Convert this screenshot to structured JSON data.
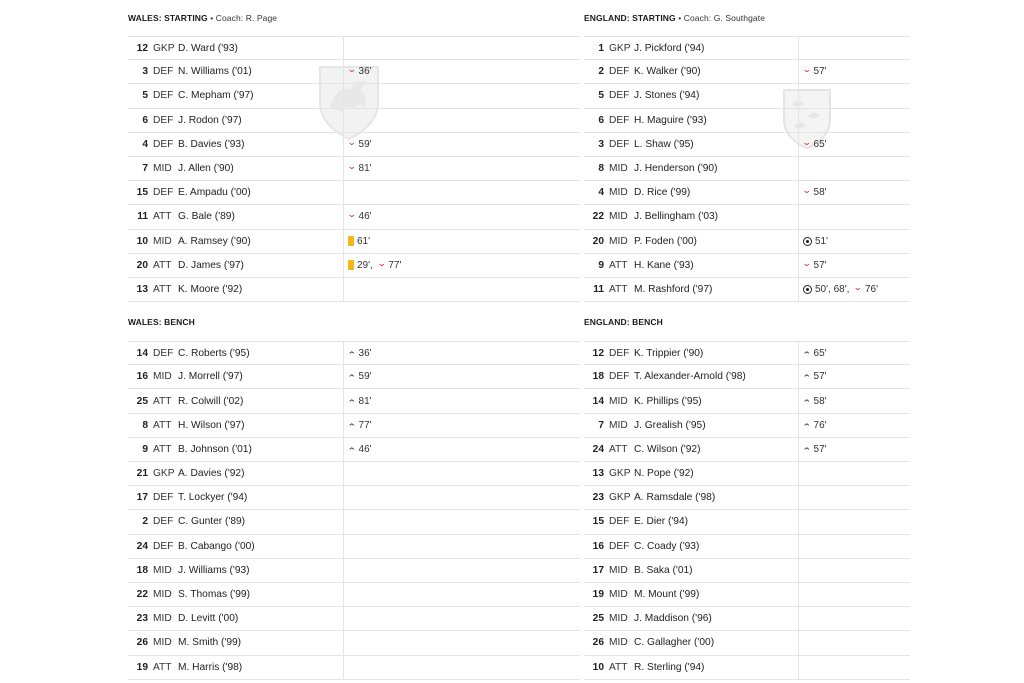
{
  "wales": {
    "starting_title": "WALES: STARTING",
    "coach": " • Coach: R. Page",
    "bench_title": "WALES: BENCH",
    "starting": [
      {
        "num": "12",
        "pos": "GKP",
        "name": "D. Ward ('93)",
        "events": []
      },
      {
        "num": "3",
        "pos": "DEF",
        "name": "N. Williams ('01)",
        "events": [
          {
            "icon": "sub-off-icon",
            "text": "36'"
          }
        ]
      },
      {
        "num": "5",
        "pos": "DEF",
        "name": "C. Mepham ('97)",
        "events": []
      },
      {
        "num": "6",
        "pos": "DEF",
        "name": "J. Rodon ('97)",
        "events": []
      },
      {
        "num": "4",
        "pos": "DEF",
        "name": "B. Davies ('93)",
        "events": [
          {
            "icon": "sub-off-icon",
            "text": "59'"
          }
        ]
      },
      {
        "num": "7",
        "pos": "MID",
        "name": "J. Allen ('90)",
        "events": [
          {
            "icon": "sub-off-icon",
            "text": "81'"
          }
        ]
      },
      {
        "num": "15",
        "pos": "DEF",
        "name": "E. Ampadu ('00)",
        "events": []
      },
      {
        "num": "11",
        "pos": "ATT",
        "name": "G. Bale ('89)",
        "events": [
          {
            "icon": "sub-off-icon",
            "text": "46'"
          }
        ]
      },
      {
        "num": "10",
        "pos": "MID",
        "name": "A. Ramsey ('90)",
        "events": [
          {
            "icon": "yellow-card-icon",
            "text": "61'"
          }
        ]
      },
      {
        "num": "20",
        "pos": "ATT",
        "name": "D. James ('97)",
        "events": [
          {
            "icon": "yellow-card-icon",
            "text": "29',"
          },
          {
            "icon": "sub-off-icon",
            "text": "77'"
          }
        ]
      },
      {
        "num": "13",
        "pos": "ATT",
        "name": "K. Moore ('92)",
        "events": []
      }
    ],
    "bench": [
      {
        "num": "14",
        "pos": "DEF",
        "name": "C. Roberts ('95)",
        "events": [
          {
            "icon": "sub-on-icon",
            "text": "36'"
          }
        ]
      },
      {
        "num": "16",
        "pos": "MID",
        "name": "J. Morrell ('97)",
        "events": [
          {
            "icon": "sub-on-icon",
            "text": "59'"
          }
        ]
      },
      {
        "num": "25",
        "pos": "ATT",
        "name": "R. Colwill ('02)",
        "events": [
          {
            "icon": "sub-on-icon",
            "text": "81'"
          }
        ]
      },
      {
        "num": "8",
        "pos": "ATT",
        "name": "H. Wilson ('97)",
        "events": [
          {
            "icon": "sub-on-icon",
            "text": "77'"
          }
        ]
      },
      {
        "num": "9",
        "pos": "ATT",
        "name": "B. Johnson ('01)",
        "events": [
          {
            "icon": "sub-on-icon",
            "text": "46'"
          }
        ]
      },
      {
        "num": "21",
        "pos": "GKP",
        "name": "A. Davies ('92)",
        "events": []
      },
      {
        "num": "17",
        "pos": "DEF",
        "name": "T. Lockyer ('94)",
        "events": []
      },
      {
        "num": "2",
        "pos": "DEF",
        "name": "C. Gunter ('89)",
        "events": []
      },
      {
        "num": "24",
        "pos": "DEF",
        "name": "B. Cabango ('00)",
        "events": []
      },
      {
        "num": "18",
        "pos": "MID",
        "name": "J. Williams ('93)",
        "events": []
      },
      {
        "num": "22",
        "pos": "MID",
        "name": "S. Thomas ('99)",
        "events": []
      },
      {
        "num": "23",
        "pos": "MID",
        "name": "D. Levitt ('00)",
        "events": []
      },
      {
        "num": "26",
        "pos": "MID",
        "name": "M. Smith ('99)",
        "events": []
      },
      {
        "num": "19",
        "pos": "ATT",
        "name": "M. Harris ('98)",
        "events": []
      }
    ]
  },
  "england": {
    "starting_title": "ENGLAND: STARTING",
    "coach": " • Coach: G. Southgate",
    "bench_title": "ENGLAND: BENCH",
    "starting": [
      {
        "num": "1",
        "pos": "GKP",
        "name": "J. Pickford ('94)",
        "events": []
      },
      {
        "num": "2",
        "pos": "DEF",
        "name": "K. Walker ('90)",
        "events": [
          {
            "icon": "sub-off-icon",
            "text": "57'"
          }
        ]
      },
      {
        "num": "5",
        "pos": "DEF",
        "name": "J. Stones ('94)",
        "events": []
      },
      {
        "num": "6",
        "pos": "DEF",
        "name": "H. Maguire ('93)",
        "events": []
      },
      {
        "num": "3",
        "pos": "DEF",
        "name": "L. Shaw ('95)",
        "events": [
          {
            "icon": "sub-off-icon",
            "text": "65'"
          }
        ]
      },
      {
        "num": "8",
        "pos": "MID",
        "name": "J. Henderson ('90)",
        "events": []
      },
      {
        "num": "4",
        "pos": "MID",
        "name": "D. Rice ('99)",
        "events": [
          {
            "icon": "sub-off-icon",
            "text": "58'"
          }
        ]
      },
      {
        "num": "22",
        "pos": "MID",
        "name": "J. Bellingham ('03)",
        "events": []
      },
      {
        "num": "20",
        "pos": "MID",
        "name": "P. Foden ('00)",
        "events": [
          {
            "icon": "goal-icon",
            "text": "51'"
          }
        ]
      },
      {
        "num": "9",
        "pos": "ATT",
        "name": "H. Kane ('93)",
        "events": [
          {
            "icon": "sub-off-icon",
            "text": "57'"
          }
        ]
      },
      {
        "num": "11",
        "pos": "ATT",
        "name": "M. Rashford ('97)",
        "events": [
          {
            "icon": "goal-icon",
            "text": "50', 68',"
          },
          {
            "icon": "sub-off-icon",
            "text": "76'"
          }
        ]
      }
    ],
    "bench": [
      {
        "num": "12",
        "pos": "DEF",
        "name": "K. Trippier ('90)",
        "events": [
          {
            "icon": "sub-on-icon",
            "text": "65'"
          }
        ]
      },
      {
        "num": "18",
        "pos": "DEF",
        "name": "T. Alexander-Arnold ('98)",
        "events": [
          {
            "icon": "sub-on-icon",
            "text": "57'"
          }
        ]
      },
      {
        "num": "14",
        "pos": "MID",
        "name": "K. Phillips ('95)",
        "events": [
          {
            "icon": "sub-on-icon",
            "text": "58'"
          }
        ]
      },
      {
        "num": "7",
        "pos": "MID",
        "name": "J. Grealish ('95)",
        "events": [
          {
            "icon": "sub-on-icon",
            "text": "76'"
          }
        ]
      },
      {
        "num": "24",
        "pos": "ATT",
        "name": "C. Wilson ('92)",
        "events": [
          {
            "icon": "sub-on-icon",
            "text": "57'"
          }
        ]
      },
      {
        "num": "13",
        "pos": "GKP",
        "name": "N. Pope ('92)",
        "events": []
      },
      {
        "num": "23",
        "pos": "GKP",
        "name": "A. Ramsdale ('98)",
        "events": []
      },
      {
        "num": "15",
        "pos": "DEF",
        "name": "E. Dier ('94)",
        "events": []
      },
      {
        "num": "16",
        "pos": "DEF",
        "name": "C. Coady ('93)",
        "events": []
      },
      {
        "num": "17",
        "pos": "MID",
        "name": "B. Saka ('01)",
        "events": []
      },
      {
        "num": "19",
        "pos": "MID",
        "name": "M. Mount ('99)",
        "events": []
      },
      {
        "num": "25",
        "pos": "MID",
        "name": "J. Maddison ('96)",
        "events": []
      },
      {
        "num": "26",
        "pos": "MID",
        "name": "C. Gallagher ('00)",
        "events": []
      },
      {
        "num": "10",
        "pos": "ATT",
        "name": "R. Sterling ('94)",
        "events": []
      }
    ]
  },
  "colors": {
    "sub_off": "#e0261f",
    "yellow_card": "#f5b61a",
    "divider": "#e4e4e4"
  }
}
